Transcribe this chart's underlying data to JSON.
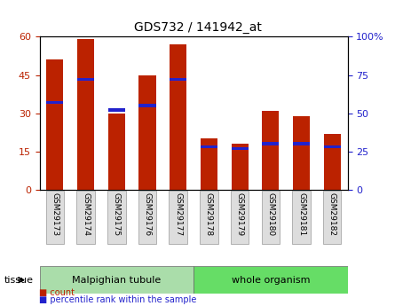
{
  "title": "GDS732 / 141942_at",
  "categories": [
    "GSM29173",
    "GSM29174",
    "GSM29175",
    "GSM29176",
    "GSM29177",
    "GSM29178",
    "GSM29179",
    "GSM29180",
    "GSM29181",
    "GSM29182"
  ],
  "counts": [
    51,
    59,
    30,
    45,
    57,
    20,
    18,
    31,
    29,
    22
  ],
  "percentiles": [
    57,
    72,
    52,
    55,
    72,
    28,
    27,
    30,
    30,
    28
  ],
  "bar_color": "#BB2200",
  "pct_color": "#2222CC",
  "ylim_left": [
    0,
    60
  ],
  "ylim_right": [
    0,
    100
  ],
  "yticks_left": [
    0,
    15,
    30,
    45,
    60
  ],
  "yticks_right": [
    0,
    25,
    50,
    75,
    100
  ],
  "groups": [
    {
      "label": "Malpighian tubule",
      "start": 0,
      "end": 5,
      "color": "#AADDAA"
    },
    {
      "label": "whole organism",
      "start": 5,
      "end": 10,
      "color": "#88DD88"
    }
  ],
  "tissue_label": "tissue",
  "legend_count": "count",
  "legend_pct": "percentile rank within the sample",
  "plot_bg": "#FFFFFF",
  "tick_bg": "#CCCCCC",
  "group_box_color": "#AADDAA",
  "group2_box_color": "#88EE88"
}
